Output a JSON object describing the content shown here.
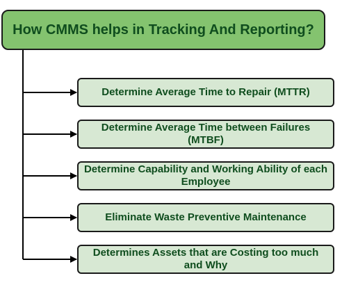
{
  "title": "How CMMS helps in  Tracking And Reporting?",
  "items": [
    {
      "label": "Determine Average Time to Repair (MTTR)"
    },
    {
      "label": "Determine Average Time between Failures (MTBF)"
    },
    {
      "label": "Determine Capability and Working Ability of each Employee"
    },
    {
      "label": "Eliminate Waste Preventive Maintenance"
    },
    {
      "label": "Determines Assets that are Costing too much and Why"
    }
  ],
  "colors": {
    "title_fill": "#84c36f",
    "item_fill": "#d7e8d3",
    "text": "#0f4d1e",
    "line": "#000000"
  }
}
